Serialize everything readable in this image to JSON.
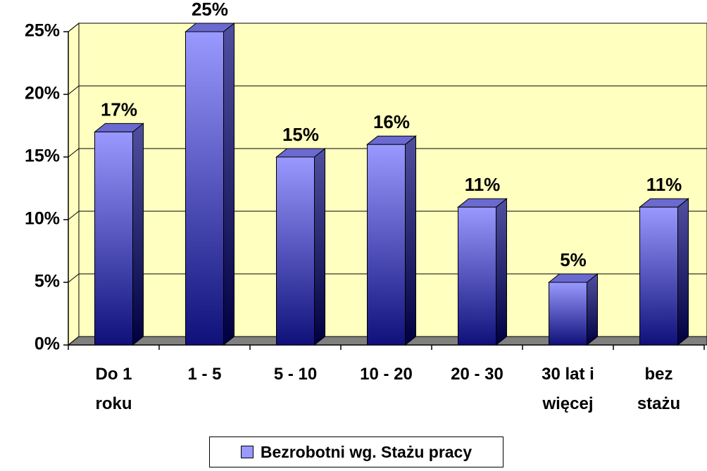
{
  "chart_data": {
    "type": "bar",
    "categories": [
      "Do 1 roku",
      "1 - 5",
      "5 - 10",
      "10 - 20",
      "20 - 30",
      "30 lat i więcej",
      "bez stażu"
    ],
    "series": [
      {
        "name": "Bezrobotni wg. Stażu pracy",
        "color": "#9999ff",
        "values": [
          17,
          25,
          15,
          16,
          11,
          5,
          11
        ],
        "value_labels": [
          "17%",
          "25%",
          "15%",
          "16%",
          "11%",
          "5%",
          "11%"
        ]
      }
    ],
    "ylim": [
      0,
      25
    ],
    "yticks": [
      {
        "value": 0,
        "label": "0%"
      },
      {
        "value": 5,
        "label": "5%"
      },
      {
        "value": 10,
        "label": "10%"
      },
      {
        "value": 15,
        "label": "15%"
      },
      {
        "value": 20,
        "label": "20%"
      },
      {
        "value": 25,
        "label": "25%"
      }
    ],
    "grid": true,
    "legend": "bottom"
  }
}
